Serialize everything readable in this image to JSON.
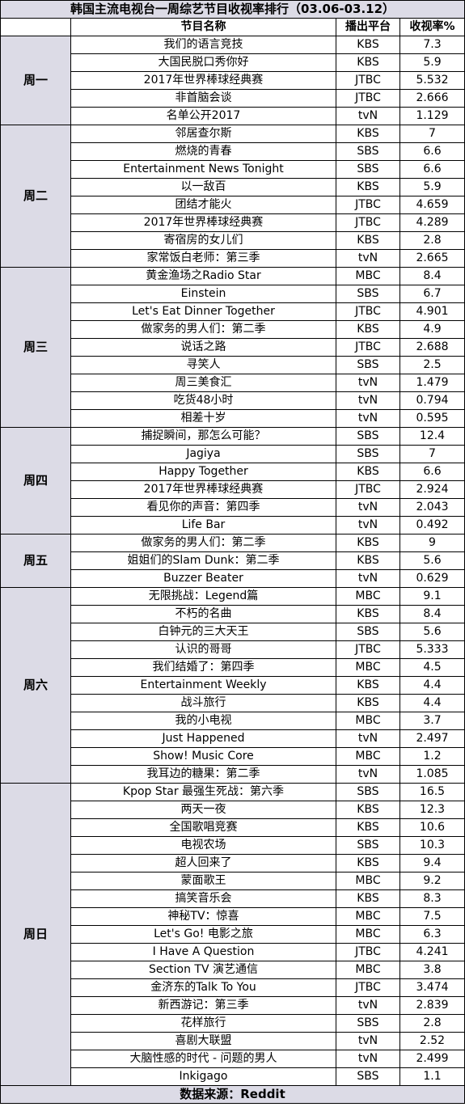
{
  "title": "韩国主流电视台一周综艺节目收视率排行（03.06-03.12）",
  "headers": {
    "name": "节目名称",
    "platform": "播出平台",
    "rate": "收视率%"
  },
  "footer": "数据来源：Reddit",
  "days": [
    {
      "day": "周一",
      "rows": [
        [
          "我们的语言竞技",
          "KBS",
          "7.3"
        ],
        [
          "大国民脱口秀你好",
          "KBS",
          "5.9"
        ],
        [
          "2017年世界棒球经典赛",
          "JTBC",
          "5.532"
        ],
        [
          "非首脑会谈",
          "JTBC",
          "2.666"
        ],
        [
          "名单公开2017",
          "tvN",
          "1.129"
        ]
      ]
    },
    {
      "day": "周二",
      "rows": [
        [
          "邻居查尔斯",
          "KBS",
          "7"
        ],
        [
          "燃烧的青春",
          "SBS",
          "6.6"
        ],
        [
          "Entertainment News Tonight",
          "SBS",
          "6.6"
        ],
        [
          "以一敌百",
          "KBS",
          "5.9"
        ],
        [
          "团结才能火",
          "JTBC",
          "4.659"
        ],
        [
          "2017年世界棒球经典赛",
          "JTBC",
          "4.289"
        ],
        [
          "寄宿房的女儿们",
          "KBS",
          "2.8"
        ],
        [
          "家常饭白老师：第三季",
          "tvN",
          "2.665"
        ]
      ]
    },
    {
      "day": "周三",
      "rows": [
        [
          "黄金渔场之Radio Star",
          "MBC",
          "8.4"
        ],
        [
          "Einstein",
          "SBS",
          "6.7"
        ],
        [
          "Let's Eat Dinner Together",
          "JTBC",
          "4.901"
        ],
        [
          "做家务的男人们：第二季",
          "KBS",
          "4.9"
        ],
        [
          "说话之路",
          "JTBC",
          "2.688"
        ],
        [
          "寻笑人",
          "SBS",
          "2.5"
        ],
        [
          "周三美食汇",
          "tvN",
          "1.479"
        ],
        [
          "吃货48小时",
          "tvN",
          "0.794"
        ],
        [
          "相差十岁",
          "tvN",
          "0.595"
        ]
      ]
    },
    {
      "day": "周四",
      "rows": [
        [
          "捕捉瞬间，那怎么可能？",
          "SBS",
          "12.4"
        ],
        [
          "Jagiya",
          "SBS",
          "7"
        ],
        [
          "Happy Together",
          "KBS",
          "6.6"
        ],
        [
          "2017年世界棒球经典赛",
          "JTBC",
          "2.924"
        ],
        [
          "看见你的声音：第四季",
          "tvN",
          "2.043"
        ],
        [
          "Life Bar",
          "tvN",
          "0.492"
        ]
      ]
    },
    {
      "day": "周五",
      "rows": [
        [
          "做家务的男人们：第二季",
          "KBS",
          "9"
        ],
        [
          "姐姐们的Slam Dunk：第二季",
          "KBS",
          "5.6"
        ],
        [
          "Buzzer Beater",
          "tvN",
          "0.629"
        ]
      ]
    },
    {
      "day": "周六",
      "rows": [
        [
          "无限挑战：Legend篇",
          "MBC",
          "9.1"
        ],
        [
          "不朽的名曲",
          "KBS",
          "8.4"
        ],
        [
          "白钟元的三大天王",
          "SBS",
          "5.6"
        ],
        [
          "认识的哥哥",
          "JTBC",
          "5.333"
        ],
        [
          "我们结婚了：第四季",
          "MBC",
          "4.5"
        ],
        [
          "Entertainment Weekly",
          "KBS",
          "4.4"
        ],
        [
          "战斗旅行",
          "KBS",
          "4.4"
        ],
        [
          "我的小电视",
          "MBC",
          "3.7"
        ],
        [
          "Just Happened",
          "tvN",
          "2.497"
        ],
        [
          "Show! Music Core",
          "MBC",
          "1.2"
        ],
        [
          "我耳边的糖果：第二季",
          "tvN",
          "1.085"
        ]
      ]
    },
    {
      "day": "周日",
      "rows": [
        [
          "Kpop Star 最强生死战：第六季",
          "SBS",
          "16.5"
        ],
        [
          "两天一夜",
          "KBS",
          "12.3"
        ],
        [
          "全国歌唱竞赛",
          "KBS",
          "10.6"
        ],
        [
          "电视农场",
          "SBS",
          "10.3"
        ],
        [
          "超人回来了",
          "KBS",
          "9.4"
        ],
        [
          "蒙面歌王",
          "MBC",
          "9.2"
        ],
        [
          "搞笑音乐会",
          "KBS",
          "8.3"
        ],
        [
          "神秘TV：惊喜",
          "MBC",
          "7.5"
        ],
        [
          "Let's Go! 电影之旅",
          "MBC",
          "6.3"
        ],
        [
          "I Have A Question",
          "JTBC",
          "4.241"
        ],
        [
          "Section TV 演艺通信",
          "MBC",
          "3.8"
        ],
        [
          "金济东的Talk To You",
          "JTBC",
          "3.474"
        ],
        [
          "新西游记：第三季",
          "tvN",
          "2.839"
        ],
        [
          "花样旅行",
          "SBS",
          "2.8"
        ],
        [
          "喜剧大联盟",
          "tvN",
          "2.52"
        ],
        [
          "大脑性感的时代 - 问题的男人",
          "tvN",
          "2.499"
        ],
        [
          "Inkigago",
          "SBS",
          "1.1"
        ]
      ]
    }
  ]
}
